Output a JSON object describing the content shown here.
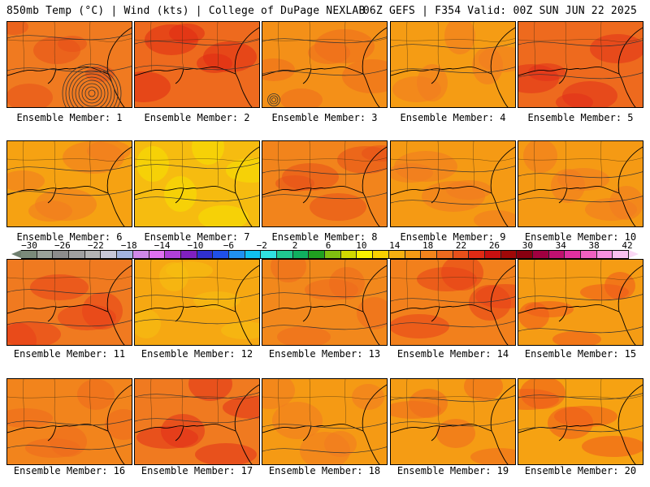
{
  "header": {
    "left": "850mb Temp (°C) | Wind (kts) | College of DuPage NEXLAB",
    "right": "06Z GEFS | F354 Valid: 00Z SUN JUN 22 2025"
  },
  "panels": [
    {
      "label": "Ensemble Member: 1",
      "base": "#f07a20",
      "accent": "#e8501a",
      "storm": true
    },
    {
      "label": "Ensemble Member: 2",
      "base": "#ee6a1e",
      "accent": "#e02a14",
      "storm": false
    },
    {
      "label": "Ensemble Member: 3",
      "base": "#f49018",
      "accent": "#ef6c1e",
      "storm": true
    },
    {
      "label": "Ensemble Member: 4",
      "base": "#f59c14",
      "accent": "#f07a20",
      "storm": false
    },
    {
      "label": "Ensemble Member: 5",
      "base": "#ee6a1e",
      "accent": "#e2301a",
      "storm": false
    },
    {
      "label": "Ensemble Member: 6",
      "base": "#f6a212",
      "accent": "#f07a20",
      "storm": false
    },
    {
      "label": "Ensemble Member: 7",
      "base": "#f6bc10",
      "accent": "#f6e200",
      "storm": false
    },
    {
      "label": "Ensemble Member: 8",
      "base": "#f2841c",
      "accent": "#e8501a",
      "storm": false
    },
    {
      "label": "Ensemble Member: 9",
      "base": "#f59a14",
      "accent": "#f07a20",
      "storm": false
    },
    {
      "label": "Ensemble Member: 10",
      "base": "#f59a14",
      "accent": "#f07a20",
      "storm": false
    },
    {
      "label": "Ensemble Member: 11",
      "base": "#f07a20",
      "accent": "#e8401a",
      "storm": false
    },
    {
      "label": "Ensemble Member: 12",
      "base": "#f6a812",
      "accent": "#f6c010",
      "storm": false
    },
    {
      "label": "Ensemble Member: 13",
      "base": "#f2881c",
      "accent": "#ee6a1e",
      "storm": false
    },
    {
      "label": "Ensemble Member: 14",
      "base": "#f2801c",
      "accent": "#e8401a",
      "storm": false
    },
    {
      "label": "Ensemble Member: 15",
      "base": "#f59c14",
      "accent": "#ee5a1c",
      "storm": false
    },
    {
      "label": "Ensemble Member: 16",
      "base": "#f2841c",
      "accent": "#ee6a1e",
      "storm": false
    },
    {
      "label": "Ensemble Member: 17",
      "base": "#f07a20",
      "accent": "#e2301a",
      "storm": false
    },
    {
      "label": "Ensemble Member: 18",
      "base": "#f59a14",
      "accent": "#f07a20",
      "storm": false
    },
    {
      "label": "Ensemble Member: 19",
      "base": "#f59c14",
      "accent": "#ee6a1e",
      "storm": false
    },
    {
      "label": "Ensemble Member: 20",
      "base": "#f6a212",
      "accent": "#ee5a1c",
      "storm": false
    }
  ],
  "colorbar": {
    "labels": [
      "−30",
      "−26",
      "−22",
      "−18",
      "−14",
      "−10",
      "−6",
      "−2",
      "2",
      "6",
      "10",
      "14",
      "18",
      "22",
      "26",
      "30",
      "34",
      "38",
      "42"
    ],
    "colors": [
      "#7a8a7a",
      "#9aa29a",
      "#8c8c8c",
      "#a0a0a0",
      "#b4b4b4",
      "#c8c8d8",
      "#a4b4e0",
      "#d088e8",
      "#e070f0",
      "#b040d8",
      "#8020c0",
      "#3030d0",
      "#2050e8",
      "#2090f0",
      "#10c0f0",
      "#30e0e0",
      "#20c890",
      "#10b060",
      "#20a020",
      "#80c010",
      "#d0d800",
      "#f8f000",
      "#f8d000",
      "#f6b010",
      "#f59a14",
      "#f2841c",
      "#ee6a1e",
      "#e8501a",
      "#e02a14",
      "#c81010",
      "#a00808",
      "#880010",
      "#a00040",
      "#c01070",
      "#e030a0",
      "#f060c0",
      "#f890e0",
      "#fac0f0"
    ],
    "left_arrow": "#708070",
    "right_arrow": "#fad8f4"
  }
}
